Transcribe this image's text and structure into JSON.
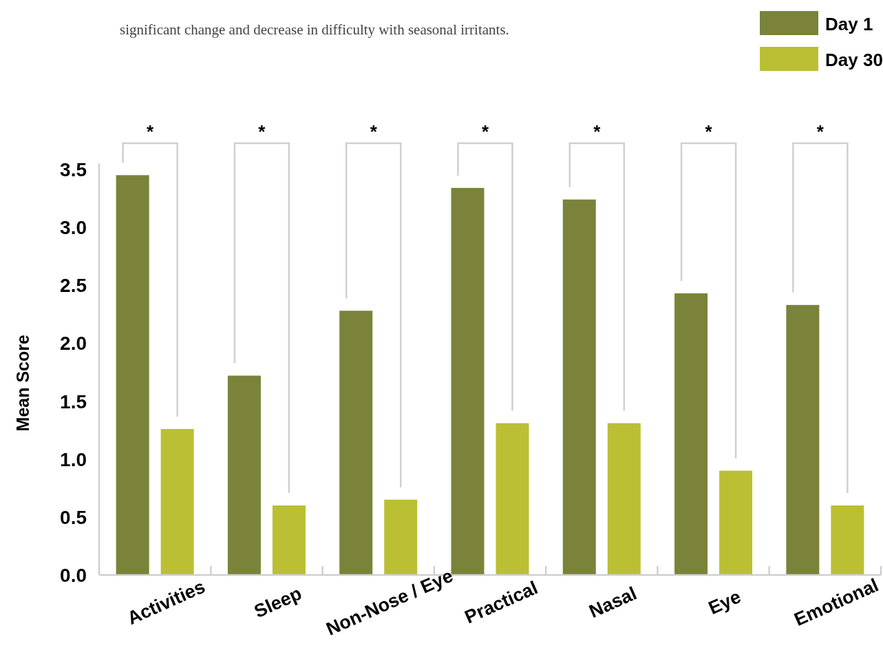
{
  "chart_data": {
    "type": "bar",
    "subtitle": "significant change and decrease in difficulty with seasonal irritants.",
    "ylabel": "Mean Score",
    "categories": [
      "Activities",
      "Sleep",
      "Non-Nose / Eye",
      "Practical",
      "Nasal",
      "Eye",
      "Emotional"
    ],
    "series": [
      {
        "name": "Day 1",
        "color": "#7a8339",
        "values": [
          3.45,
          1.72,
          2.28,
          3.34,
          3.24,
          2.43,
          2.33
        ]
      },
      {
        "name": "Day 30",
        "color": "#bbbf34",
        "values": [
          1.26,
          0.6,
          0.65,
          1.31,
          1.31,
          0.9,
          0.6
        ]
      }
    ],
    "ylim": [
      0,
      3.55
    ],
    "yticks": [
      {
        "value": 0,
        "label": "0.0"
      },
      0.5,
      {
        "value": 1,
        "label": "1.0"
      },
      1.5,
      {
        "value": 2,
        "label": "2.0"
      },
      2.5,
      {
        "value": 3,
        "label": "3.0"
      },
      3.5
    ],
    "annotations": [
      "*",
      "*",
      "*",
      "*",
      "*",
      "*",
      "*"
    ],
    "legend": "top right",
    "grid": false
  }
}
